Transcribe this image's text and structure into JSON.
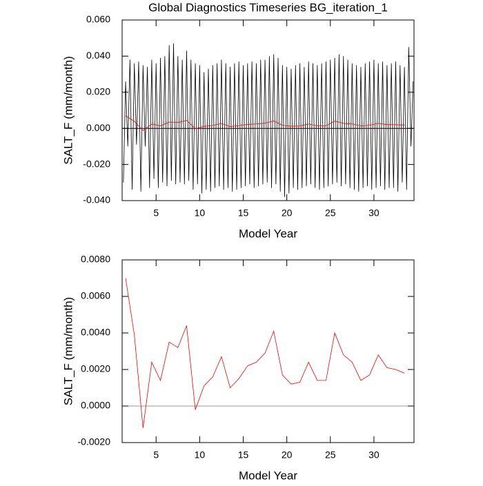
{
  "chart_data": [
    {
      "type": "line",
      "title": "Global Diagnostics Timeseries BG_iteration_1",
      "xlabel": "Model Year",
      "ylabel": "SALT_F (mm/month)",
      "xlim": [
        1.1,
        34.6
      ],
      "xticks": [
        5,
        10,
        15,
        20,
        25,
        30
      ],
      "ylim": [
        -0.04,
        0.06
      ],
      "yticks": [
        {
          "value": -0.04,
          "label": "-0.040"
        },
        {
          "value": -0.02,
          "label": "-0.020"
        },
        {
          "value": 0,
          "label": "0.000"
        },
        {
          "value": 0.02,
          "label": "0.020"
        },
        {
          "value": 0.04,
          "label": "0.040"
        },
        {
          "value": 0.06,
          "label": "0.060"
        }
      ],
      "hline": 0,
      "hline_color": "#000000",
      "series": [
        {
          "color": "#000000",
          "x": [
            1.25,
            1.5,
            1.75,
            2,
            2.25,
            2.5,
            2.75,
            3,
            3.25,
            3.5,
            3.75,
            4,
            4.25,
            4.5,
            4.75,
            5,
            5.25,
            5.5,
            5.75,
            6,
            6.25,
            6.5,
            6.75,
            7,
            7.25,
            7.5,
            7.75,
            8,
            8.25,
            8.5,
            8.75,
            9,
            9.25,
            9.5,
            9.75,
            10,
            10.25,
            10.5,
            10.75,
            11,
            11.25,
            11.5,
            11.75,
            12,
            12.25,
            12.5,
            12.75,
            13,
            13.25,
            13.5,
            13.75,
            14,
            14.25,
            14.5,
            14.75,
            15,
            15.25,
            15.5,
            15.75,
            16,
            16.25,
            16.5,
            16.75,
            17,
            17.25,
            17.5,
            17.75,
            18,
            18.25,
            18.5,
            18.75,
            19,
            19.25,
            19.5,
            19.75,
            20,
            20.25,
            20.5,
            20.75,
            21,
            21.25,
            21.5,
            21.75,
            22,
            22.25,
            22.5,
            22.75,
            23,
            23.25,
            23.5,
            23.75,
            24,
            24.25,
            24.5,
            24.75,
            25,
            25.25,
            25.5,
            25.75,
            26,
            26.25,
            26.5,
            26.75,
            27,
            27.25,
            27.5,
            27.75,
            28,
            28.25,
            28.5,
            28.75,
            29,
            29.25,
            29.5,
            29.75,
            30,
            30.25,
            30.5,
            30.75,
            31,
            31.25,
            31.5,
            31.75,
            32,
            32.25,
            32.5,
            32.75,
            33,
            33.25,
            33.5,
            33.75,
            34,
            34.25,
            34.5
          ],
          "values": [
            -0.03,
            0.026,
            -0.01,
            0.038,
            -0.034,
            0.036,
            -0.009,
            0.037,
            -0.035,
            0.035,
            -0.01,
            0.034,
            -0.033,
            0.038,
            -0.028,
            0.036,
            -0.033,
            0.039,
            -0.03,
            0.04,
            -0.032,
            0.046,
            -0.029,
            0.047,
            -0.031,
            0.04,
            -0.03,
            0.038,
            -0.031,
            0.043,
            -0.029,
            0.038,
            -0.034,
            0.036,
            -0.031,
            0.035,
            -0.036,
            0.031,
            -0.034,
            0.033,
            -0.035,
            0.035,
            -0.033,
            0.036,
            -0.032,
            0.038,
            -0.034,
            0.036,
            -0.033,
            0.034,
            -0.035,
            0.036,
            -0.034,
            0.037,
            -0.033,
            0.035,
            -0.032,
            0.036,
            -0.031,
            0.037,
            -0.033,
            0.036,
            -0.032,
            0.038,
            -0.031,
            0.038,
            -0.03,
            0.04,
            -0.033,
            0.041,
            -0.031,
            0.039,
            -0.035,
            0.035,
            -0.038,
            0.034,
            -0.036,
            0.033,
            -0.033,
            0.035,
            -0.034,
            0.036,
            -0.033,
            0.034,
            -0.032,
            0.037,
            -0.031,
            0.036,
            -0.033,
            0.035,
            -0.034,
            0.036,
            -0.033,
            0.037,
            -0.032,
            0.038,
            -0.031,
            0.039,
            -0.03,
            0.041,
            -0.032,
            0.04,
            -0.031,
            0.038,
            -0.033,
            0.036,
            -0.034,
            0.035,
            -0.035,
            0.034,
            -0.033,
            0.036,
            -0.032,
            0.037,
            -0.034,
            0.038,
            -0.033,
            0.036,
            -0.032,
            0.037,
            -0.034,
            0.035,
            -0.033,
            0.036,
            -0.033,
            0.037,
            -0.035,
            0.035,
            -0.03,
            0.034,
            -0.034,
            0.045,
            -0.01,
            0.026
          ]
        },
        {
          "color": "#ff0000",
          "x": [
            1.5,
            2.5,
            3.5,
            4.5,
            5.5,
            6.5,
            7.5,
            8.5,
            9.5,
            10.5,
            11.5,
            12.5,
            13.5,
            14.5,
            15.5,
            16.5,
            17.5,
            18.5,
            19.5,
            20.5,
            21.5,
            22.5,
            23.5,
            24.5,
            25.5,
            26.5,
            27.5,
            28.5,
            29.5,
            30.5,
            31.5,
            32.5,
            33.5
          ],
          "values": [
            0.007,
            0.0039,
            -0.0012,
            0.0024,
            0.0014,
            0.0035,
            0.0032,
            0.0044,
            -0.0002,
            0.0011,
            0.0016,
            0.0027,
            0.001,
            0.0015,
            0.0022,
            0.0024,
            0.0029,
            0.0041,
            0.0017,
            0.0012,
            0.0013,
            0.0024,
            0.0014,
            0.0014,
            0.004,
            0.0028,
            0.0024,
            0.0014,
            0.0017,
            0.0028,
            0.0021,
            0.002,
            0.0018
          ]
        }
      ]
    },
    {
      "type": "line",
      "xlabel": "Model Year",
      "ylabel": "SALT_F (mm/month)",
      "xlim": [
        1.1,
        34.6
      ],
      "xticks": [
        5,
        10,
        15,
        20,
        25,
        30
      ],
      "ylim": [
        -0.002,
        0.008
      ],
      "yticks": [
        {
          "value": -0.002,
          "label": "-0.0020"
        },
        {
          "value": 0,
          "label": "0.0000"
        },
        {
          "value": 0.002,
          "label": "0.0020"
        },
        {
          "value": 0.004,
          "label": "0.0040"
        },
        {
          "value": 0.006,
          "label": "0.0060"
        },
        {
          "value": 0.008,
          "label": "0.0080"
        }
      ],
      "hline": 0,
      "hline_color": "#999999",
      "series": [
        {
          "color": "#ff0000",
          "x": [
            1.5,
            2.5,
            3.5,
            4.5,
            5.5,
            6.5,
            7.5,
            8.5,
            9.5,
            10.5,
            11.5,
            12.5,
            13.5,
            14.5,
            15.5,
            16.5,
            17.5,
            18.5,
            19.5,
            20.5,
            21.5,
            22.5,
            23.5,
            24.5,
            25.5,
            26.5,
            27.5,
            28.5,
            29.5,
            30.5,
            31.5,
            32.5,
            33.5
          ],
          "values": [
            0.007,
            0.0039,
            -0.0012,
            0.0024,
            0.0014,
            0.0035,
            0.0032,
            0.0044,
            -0.0002,
            0.0011,
            0.0016,
            0.0027,
            0.001,
            0.0015,
            0.0022,
            0.0024,
            0.0029,
            0.0041,
            0.0017,
            0.0012,
            0.0013,
            0.0024,
            0.0014,
            0.0014,
            0.004,
            0.0028,
            0.0024,
            0.0014,
            0.0017,
            0.0028,
            0.0021,
            0.002,
            0.0018
          ]
        }
      ]
    }
  ]
}
